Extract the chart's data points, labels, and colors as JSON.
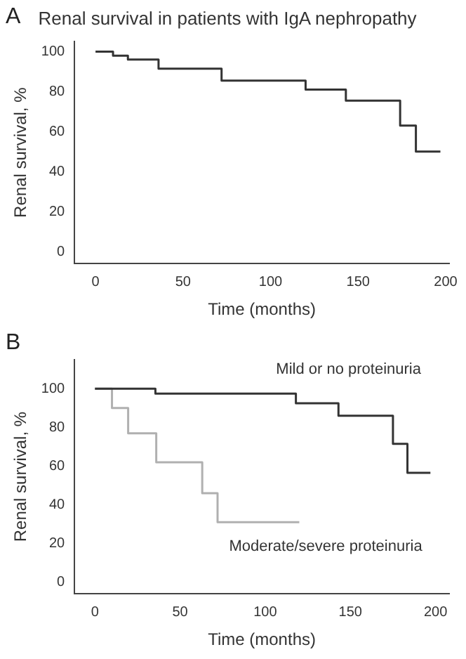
{
  "chart_data": [
    {
      "type": "step",
      "title": "Renal survival in patients with IgA nephropathy",
      "xlabel": "Time (months)",
      "ylabel": "Renal survival, %",
      "annotations": [
        "A"
      ],
      "series": [
        {
          "color": "#333333",
          "x": [
            0,
            10,
            18.5,
            36,
            72,
            120,
            143,
            174,
            183,
            197
          ],
          "values": [
            100,
            98,
            96,
            91.5,
            85.5,
            81,
            75.5,
            63,
            50,
            50
          ]
        }
      ],
      "xlim": [
        -12,
        202
      ],
      "xticks": [
        0,
        50,
        100,
        150,
        200
      ],
      "ylim": [
        -6,
        105
      ],
      "yticks": [
        0,
        20,
        40,
        60,
        80,
        100
      ],
      "grid": false,
      "legend": false,
      "marker": "none",
      "line_style": "solid"
    },
    {
      "type": "step",
      "xlabel": "Time (months)",
      "ylabel": "Renal survival, %",
      "annotations": [
        "B"
      ],
      "series": [
        {
          "name": "Mild or no proteinuria",
          "color": "#333333",
          "x": [
            0,
            35.5,
            118,
            143,
            175,
            183.5,
            197
          ],
          "values": [
            100,
            97.5,
            92.5,
            86,
            71.5,
            56.5,
            56.5
          ]
        },
        {
          "name": "Moderate/severe proteinuria",
          "color": "#b0b0b0",
          "x": [
            0,
            10,
            19.5,
            36,
            63,
            72,
            120
          ],
          "values": [
            100,
            90,
            77,
            62,
            46,
            31,
            31
          ]
        }
      ],
      "xlim": [
        -12,
        208
      ],
      "xticks": [
        0,
        50,
        100,
        150,
        200
      ],
      "ylim": [
        -6,
        115
      ],
      "yticks": [
        0,
        20,
        40,
        60,
        80,
        100
      ],
      "grid": false,
      "legend": false,
      "marker": "none",
      "line_style": "solid"
    }
  ]
}
